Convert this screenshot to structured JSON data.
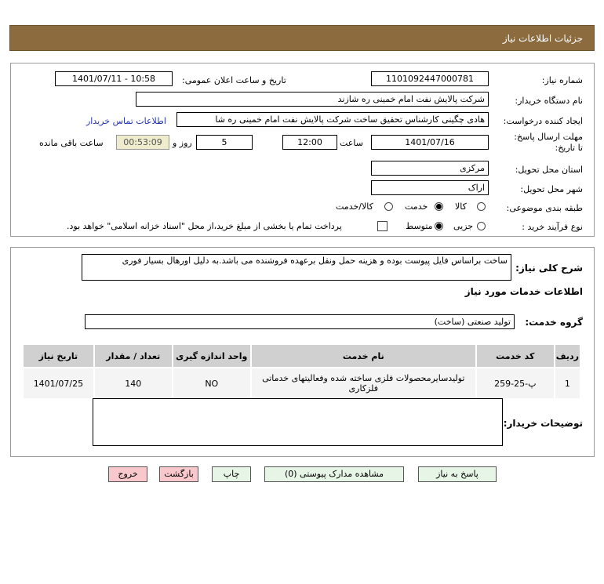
{
  "header": {
    "title": "جزئیات اطلاعات نیاز"
  },
  "form": {
    "need_number_label": "شماره نیاز:",
    "need_number": "1101092447000781",
    "announce_label": "تاریخ و ساعت اعلان عمومی:",
    "announce_value": "1401/07/11 - 10:58",
    "buyer_org_label": "نام دستگاه خریدار:",
    "buyer_org": "شرکت پالایش نفت امام خمینی  ره  شازند",
    "requester_label": "ایجاد کننده درخواست:",
    "requester": "هادی چگینی کارشناس تحقیق ساخت شرکت پالایش نفت امام خمینی  ره  شا",
    "contact_link": "اطلاعات تماس خریدار",
    "deadline_label": "مهلت ارسال پاسخ: تا تاریخ:",
    "deadline_date": "1401/07/16",
    "time_label": "ساعت",
    "deadline_time": "12:00",
    "days": "5",
    "days_label": "روز و",
    "remaining": "00:53:09",
    "remaining_label": "ساعت باقی مانده",
    "province_label": "استان محل تحویل:",
    "province": "مرکزی",
    "city_label": "شهر محل تحویل:",
    "city": "اراک",
    "category_label": "طبقه بندی موضوعی:",
    "category_options": [
      "کالا",
      "خدمت",
      "کالا/خدمت"
    ],
    "category_selected": "خدمت",
    "process_label": "نوع فرآیند خرید :",
    "process_options": [
      "جزیی",
      "متوسط"
    ],
    "process_selected": "متوسط",
    "payment_note": "پرداخت تمام یا بخشی از مبلغ خرید،از محل \"اسناد خزانه اسلامی\" خواهد بود."
  },
  "details": {
    "desc_label": "شرح کلی نیاز:",
    "desc": "ساخت براساس فایل پیوست بوده و هزینه حمل ونقل برعهده فروشنده می باشد.به دلیل اورهال بسیار فوری",
    "services_title": "اطلاعات خدمات مورد نیاز",
    "group_label": "گروه خدمت:",
    "group": "تولید صنعتی (ساخت)",
    "table": {
      "headers": [
        "ردیف",
        "کد خدمت",
        "نام خدمت",
        "واحد اندازه گیری",
        "تعداد / مقدار",
        "تاریخ نیاز"
      ],
      "rows": [
        [
          "1",
          "پ-25-259",
          "تولیدسایرمحصولات فلزی ساخته شده وفعالیتهای خدماتی فلزکاری",
          "NO",
          "140",
          "1401/07/25"
        ]
      ]
    },
    "buyer_notes_label": "توضیحات خریدار:",
    "buyer_notes": ""
  },
  "buttons": {
    "reply": "پاسخ به نیاز",
    "attachments": "مشاهده مدارک پیوستی (0)",
    "print": "چاپ",
    "back": "بازگشت",
    "exit": "خروج"
  }
}
